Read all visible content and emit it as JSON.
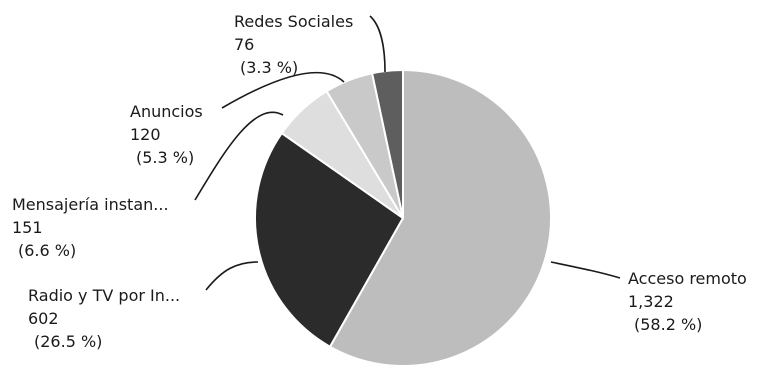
{
  "chart_data": {
    "type": "pie",
    "title": "",
    "slices": [
      {
        "label": "Acceso remoto",
        "value": 1322,
        "value_text": "1,322",
        "percent_text": "(58.2 %)",
        "color": "#bdbdbd"
      },
      {
        "label": "Radio y TV por In...",
        "value": 602,
        "value_text": "602",
        "percent_text": "(26.5 %)",
        "color": "#2b2b2b"
      },
      {
        "label": "Mensajería instan...",
        "value": 151,
        "value_text": "151",
        "percent_text": "(6.6 %)",
        "color": "#dedede"
      },
      {
        "label": "Anuncios",
        "value": 120,
        "value_text": "120",
        "percent_text": "(5.3 %)",
        "color": "#c9c9c9"
      },
      {
        "label": "Redes Sociales",
        "value": 76,
        "value_text": "76",
        "percent_text": "(3.3 %)",
        "color": "#5e5e5e"
      }
    ]
  }
}
